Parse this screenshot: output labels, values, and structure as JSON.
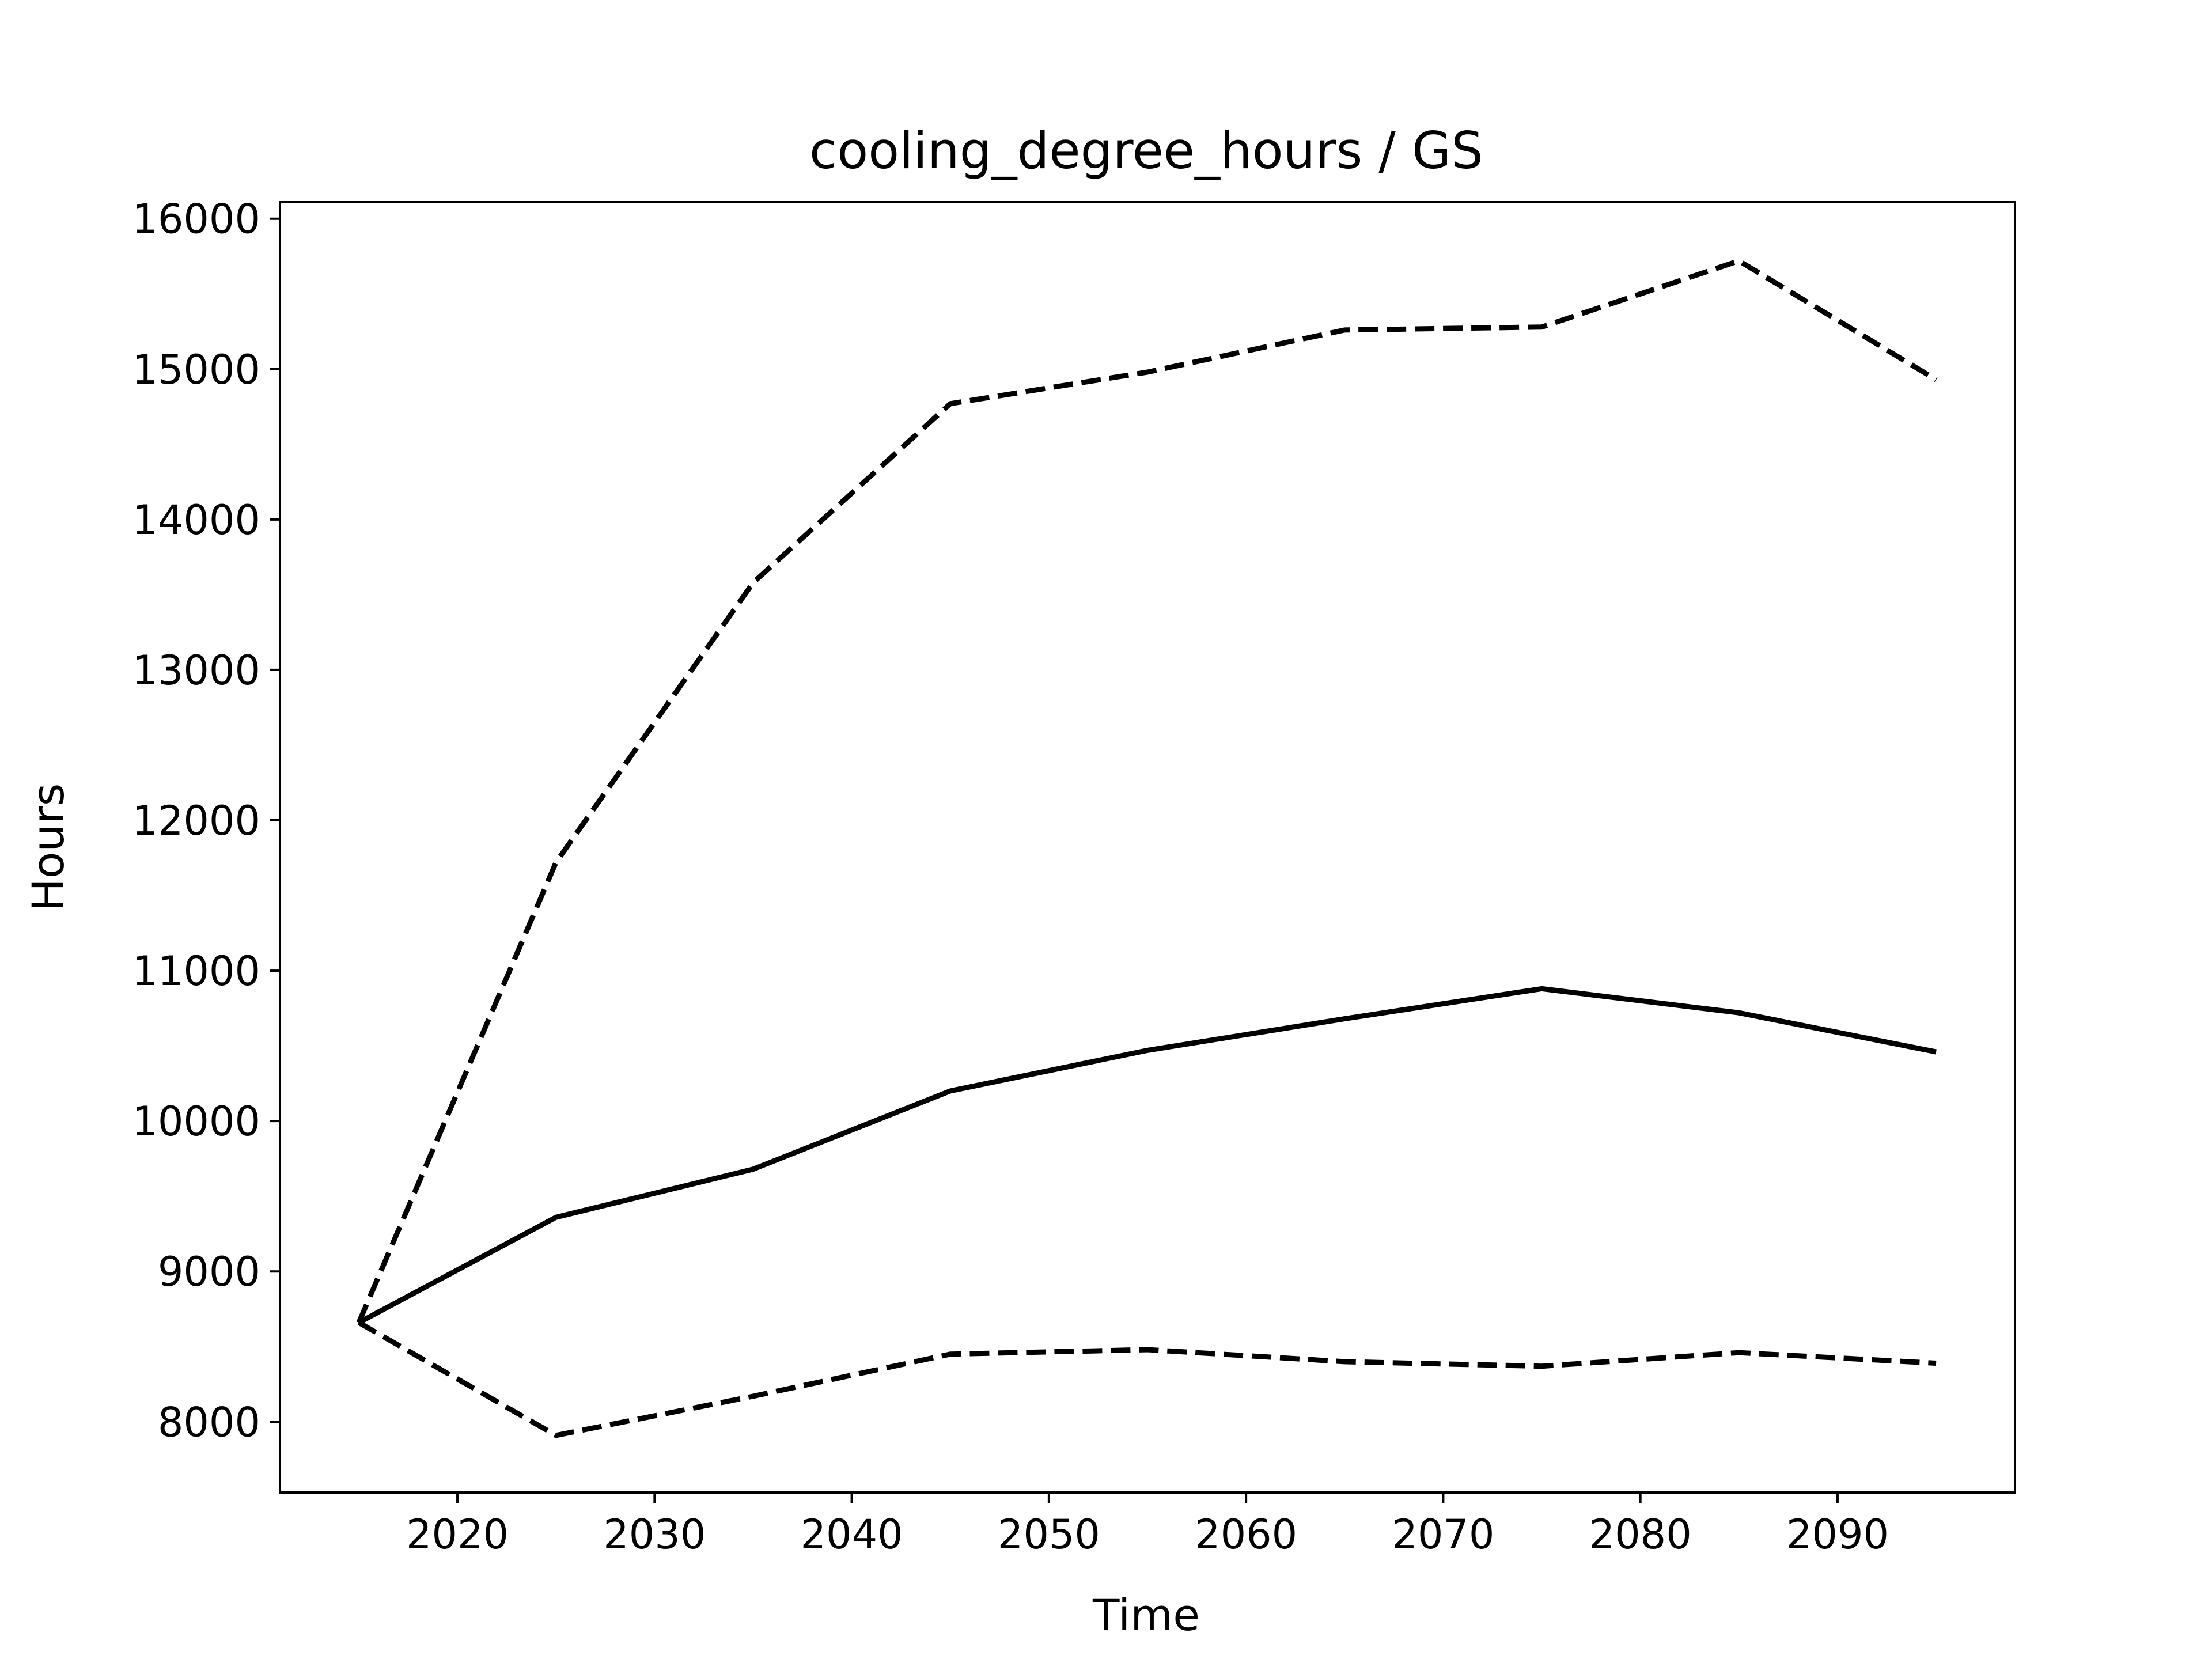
{
  "chart_data": {
    "type": "line",
    "title": "cooling_degree_hours / GS",
    "xlabel": "Time",
    "ylabel": "Hours",
    "xlim": [
      2011,
      2099
    ],
    "ylim": [
      7530,
      16110
    ],
    "x_ticks": [
      2020,
      2030,
      2040,
      2050,
      2060,
      2070,
      2080,
      2090
    ],
    "y_ticks": [
      8000,
      9000,
      10000,
      11000,
      12000,
      13000,
      14000,
      15000,
      16000
    ],
    "grid": false,
    "legend": "none",
    "x": [
      2015,
      2025,
      2035,
      2045,
      2055,
      2065,
      2075,
      2085,
      2095
    ],
    "series": [
      {
        "style": "dashed",
        "color": "#000000",
        "values": [
          8660,
          11720,
          13580,
          14770,
          14980,
          15260,
          15280,
          15720,
          14930
        ]
      },
      {
        "style": "solid",
        "color": "#000000",
        "values": [
          8660,
          9360,
          9680,
          10200,
          10470,
          10680,
          10880,
          10720,
          10460
        ]
      },
      {
        "style": "dashed",
        "color": "#000000",
        "values": [
          8660,
          7910,
          8170,
          8450,
          8480,
          8400,
          8370,
          8460,
          8390
        ]
      }
    ]
  }
}
